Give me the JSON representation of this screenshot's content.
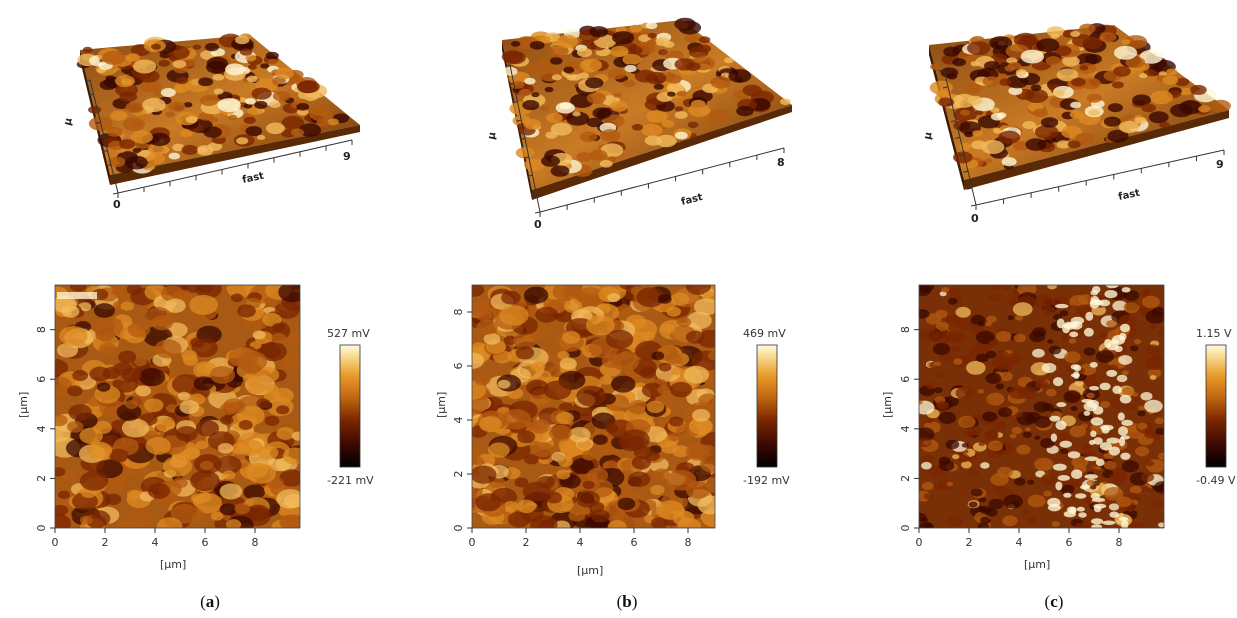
{
  "panels": [
    {
      "caption_letter": "a",
      "axis_3d": {
        "fast_label": "fast",
        "start_tick": "0",
        "end_tick": "9",
        "side_label": "μ"
      },
      "map": {
        "x_label": "[µm]",
        "y_label": "[µm]",
        "x_ticks": [
          "0",
          "2",
          "4",
          "6",
          "8"
        ],
        "y_ticks": [
          "0",
          "2",
          "4",
          "6",
          "8"
        ],
        "range_um": [
          0,
          9.8
        ]
      },
      "colorbar": {
        "max_label": "527 mV",
        "min_label": "-221 mV"
      }
    },
    {
      "caption_letter": "b",
      "axis_3d": {
        "fast_label": "fast",
        "start_tick": "0",
        "end_tick": "8",
        "side_label": "μ"
      },
      "map": {
        "x_label": "[µm]",
        "y_label": "[µm]",
        "x_ticks": [
          "0",
          "2",
          "4",
          "6",
          "8"
        ],
        "y_ticks": [
          "0",
          "2",
          "4",
          "6",
          "8"
        ],
        "range_um": [
          0,
          9.0
        ]
      },
      "colorbar": {
        "max_label": "469 mV",
        "min_label": "-192 mV"
      }
    },
    {
      "caption_letter": "c",
      "axis_3d": {
        "fast_label": "fast",
        "start_tick": "0",
        "end_tick": "9",
        "side_label": "μ"
      },
      "map": {
        "x_label": "[µm]",
        "y_label": "[µm]",
        "x_ticks": [
          "0",
          "2",
          "4",
          "6",
          "8"
        ],
        "y_ticks": [
          "0",
          "2",
          "4",
          "6",
          "8"
        ],
        "range_um": [
          0,
          9.8
        ]
      },
      "colorbar": {
        "max_label": "1.15 V",
        "min_label": "-0.49 V"
      }
    }
  ],
  "colors": {
    "colormap": [
      "#000000",
      "#3a0800",
      "#7a2600",
      "#b35a10",
      "#dc8a22",
      "#f2bb5c",
      "#fff7d6"
    ]
  }
}
